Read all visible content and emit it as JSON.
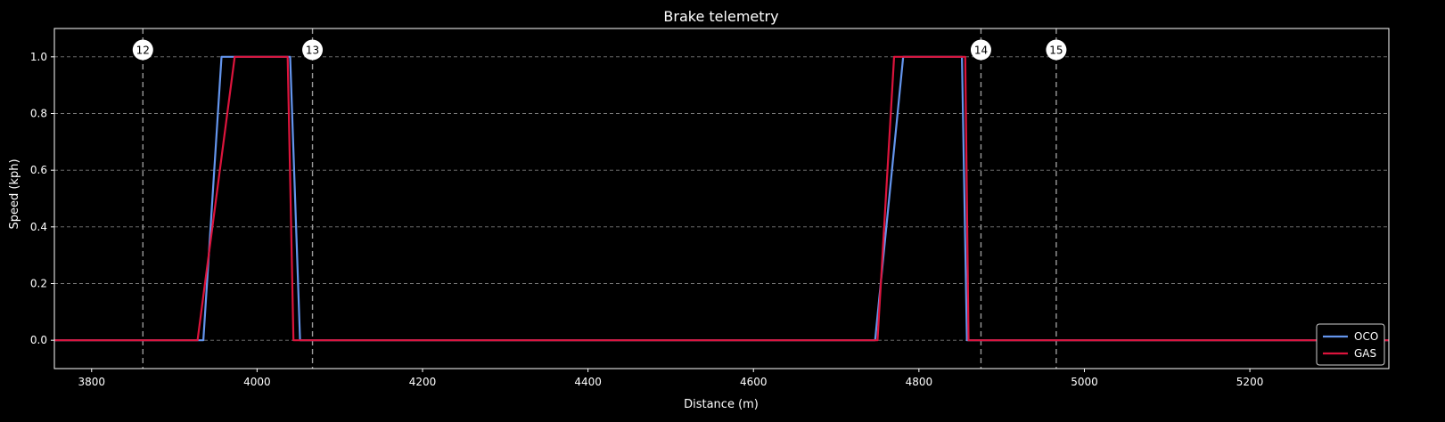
{
  "chart_data": {
    "type": "line",
    "title": "Brake telemetry",
    "xlabel": "Distance (m)",
    "ylabel": "Speed (kph)",
    "xlim": [
      3755,
      5368
    ],
    "ylim": [
      -0.1,
      1.1
    ],
    "xticks": [
      3800,
      4000,
      4200,
      4400,
      4600,
      4800,
      5000,
      5200
    ],
    "yticks": [
      0.0,
      0.2,
      0.4,
      0.6,
      0.8,
      1.0
    ],
    "ytick_labels": [
      "0.0",
      "0.2",
      "0.4",
      "0.6",
      "0.8",
      "1.0"
    ],
    "grid": "y-dashed",
    "legend_position": "bottom-right",
    "markers": [
      {
        "label": "12",
        "x": 3862
      },
      {
        "label": "13",
        "x": 4067
      },
      {
        "label": "14",
        "x": 4875
      },
      {
        "label": "15",
        "x": 4966
      }
    ],
    "series": [
      {
        "name": "OCO",
        "color": "#6495ED",
        "points": [
          [
            3755,
            0
          ],
          [
            3935,
            0
          ],
          [
            3957,
            1
          ],
          [
            4040,
            1
          ],
          [
            4052,
            0
          ],
          [
            4747,
            0
          ],
          [
            4781,
            1
          ],
          [
            4852,
            1
          ],
          [
            4858,
            0
          ],
          [
            5368,
            0
          ]
        ]
      },
      {
        "name": "GAS",
        "color": "#DC143C",
        "points": [
          [
            3755,
            0
          ],
          [
            3928,
            0
          ],
          [
            3973,
            1
          ],
          [
            4037,
            1
          ],
          [
            4044,
            0
          ],
          [
            4750,
            0
          ],
          [
            4770,
            1
          ],
          [
            4856,
            1
          ],
          [
            4860,
            0
          ],
          [
            5368,
            0
          ]
        ]
      }
    ]
  }
}
